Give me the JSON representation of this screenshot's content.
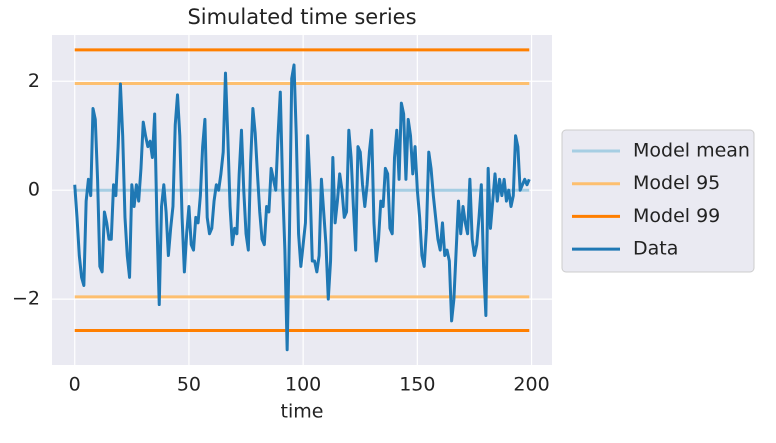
{
  "chart_data": {
    "type": "line",
    "title": "Simulated time series",
    "x_label": "time",
    "xlim": [
      -9.95,
      208.95
    ],
    "ylim": [
      -3.21,
      2.85
    ],
    "xticks": [
      0,
      50,
      100,
      150,
      200
    ],
    "yticks": [
      {
        "value": -2,
        "label": "−2"
      },
      0,
      2
    ],
    "grid": true,
    "legend": "center right outside",
    "series": [
      {
        "name": "Model mean",
        "color": "#a6cee3",
        "x": [
          0,
          199
        ],
        "values": [
          0,
          0
        ]
      },
      {
        "name": "Model 95",
        "color": "#fdbf6f",
        "x": [
          0,
          199,
          null,
          0,
          199
        ],
        "values": [
          1.96,
          1.96,
          null,
          -1.96,
          -1.96
        ]
      },
      {
        "name": "Model 99",
        "color": "#ff7f00",
        "x": [
          0,
          199,
          null,
          0,
          199
        ],
        "values": [
          2.576,
          2.576,
          null,
          -2.576,
          -2.576
        ]
      },
      {
        "name": "Data",
        "color": "#1f78b4",
        "x": [
          0,
          1,
          2,
          3,
          4,
          5,
          6,
          7,
          8,
          9,
          10,
          11,
          12,
          13,
          14,
          15,
          16,
          17,
          18,
          19,
          20,
          21,
          22,
          23,
          24,
          25,
          26,
          27,
          28,
          29,
          30,
          31,
          32,
          33,
          34,
          35,
          36,
          37,
          38,
          39,
          40,
          41,
          42,
          43,
          44,
          45,
          46,
          47,
          48,
          49,
          50,
          51,
          52,
          53,
          54,
          55,
          56,
          57,
          58,
          59,
          60,
          61,
          62,
          63,
          64,
          65,
          66,
          67,
          68,
          69,
          70,
          71,
          72,
          73,
          74,
          75,
          76,
          77,
          78,
          79,
          80,
          81,
          82,
          83,
          84,
          85,
          86,
          87,
          88,
          89,
          90,
          91,
          92,
          93,
          94,
          95,
          96,
          97,
          98,
          99,
          100,
          101,
          102,
          103,
          104,
          105,
          106,
          107,
          108,
          109,
          110,
          111,
          112,
          113,
          114,
          115,
          116,
          117,
          118,
          119,
          120,
          121,
          122,
          123,
          124,
          125,
          126,
          127,
          128,
          129,
          130,
          131,
          132,
          133,
          134,
          135,
          136,
          137,
          138,
          139,
          140,
          141,
          142,
          143,
          144,
          145,
          146,
          147,
          148,
          149,
          150,
          151,
          152,
          153,
          154,
          155,
          156,
          157,
          158,
          159,
          160,
          161,
          162,
          163,
          164,
          165,
          166,
          167,
          168,
          169,
          170,
          171,
          172,
          173,
          174,
          175,
          176,
          177,
          178,
          179,
          180,
          181,
          182,
          183,
          184,
          185,
          186,
          187,
          188,
          189,
          190,
          191,
          192,
          193,
          194,
          195,
          196,
          197,
          198,
          199
        ],
        "values": [
          0.1,
          -0.5,
          -1.2,
          -1.6,
          -1.75,
          -0.2,
          0.2,
          -0.1,
          1.5,
          1.3,
          0.2,
          -1.4,
          -1.5,
          -0.4,
          -0.6,
          -0.9,
          -0.9,
          0.1,
          -0.1,
          0.8,
          1.95,
          1.0,
          -0.5,
          -1.2,
          -1.6,
          0.1,
          -0.3,
          0.1,
          -0.2,
          0.4,
          1.25,
          1.0,
          0.8,
          0.9,
          0.6,
          1.4,
          -0.6,
          -2.1,
          -0.3,
          0.1,
          -0.4,
          -1.2,
          -0.7,
          -0.3,
          1.2,
          1.75,
          1.0,
          -0.5,
          -1.5,
          -0.8,
          -0.3,
          -1.0,
          -1.1,
          -0.5,
          -0.6,
          -0.1,
          0.8,
          1.3,
          -0.5,
          -0.8,
          -0.7,
          -0.2,
          0.1,
          0.0,
          0.3,
          0.7,
          2.15,
          1.0,
          -0.3,
          -1.0,
          -0.7,
          -0.8,
          0.3,
          1.1,
          0.0,
          -0.8,
          -1.1,
          0.5,
          1.5,
          1.05,
          0.3,
          -0.4,
          -0.9,
          -1.0,
          -0.3,
          -0.4,
          0.4,
          0.2,
          0.0,
          1.0,
          1.8,
          0.1,
          -1.1,
          -2.93,
          -0.8,
          2.05,
          2.3,
          1.0,
          -0.8,
          -1.4,
          -1.0,
          -0.6,
          1.0,
          0.1,
          -1.3,
          -1.3,
          -1.5,
          -1.2,
          0.2,
          -0.4,
          -1.0,
          -2.0,
          -1.3,
          0.6,
          -0.6,
          -0.2,
          0.3,
          0.0,
          -0.5,
          -0.4,
          1.1,
          0.6,
          -0.3,
          -1.1,
          0.8,
          0.7,
          0.1,
          -0.3,
          0.1,
          0.7,
          1.1,
          -0.6,
          -1.3,
          -0.9,
          -0.2,
          -0.3,
          0.4,
          0.3,
          -0.7,
          -0.8,
          0.6,
          1.1,
          0.2,
          1.6,
          1.4,
          0.2,
          1.3,
          1.0,
          0.3,
          0.8,
          0.0,
          -0.5,
          -1.2,
          -1.4,
          -0.7,
          0.7,
          0.4,
          -0.1,
          -0.5,
          -0.9,
          -1.1,
          -0.6,
          -1.2,
          -1.1,
          -1.3,
          -2.4,
          -2.0,
          -1.1,
          -0.2,
          -0.8,
          -0.3,
          -0.6,
          -0.8,
          0.2,
          -0.9,
          -1.2,
          -1.0,
          -0.5,
          0.1,
          -1.4,
          -2.3,
          0.4,
          -0.7,
          -0.2,
          0.3,
          -0.2,
          0.2,
          -0.1,
          0.2,
          -0.2,
          0.0,
          -0.3,
          -0.1,
          1.0,
          0.8,
          0.0,
          0.1,
          0.2,
          0.1,
          0.2
        ]
      }
    ]
  }
}
